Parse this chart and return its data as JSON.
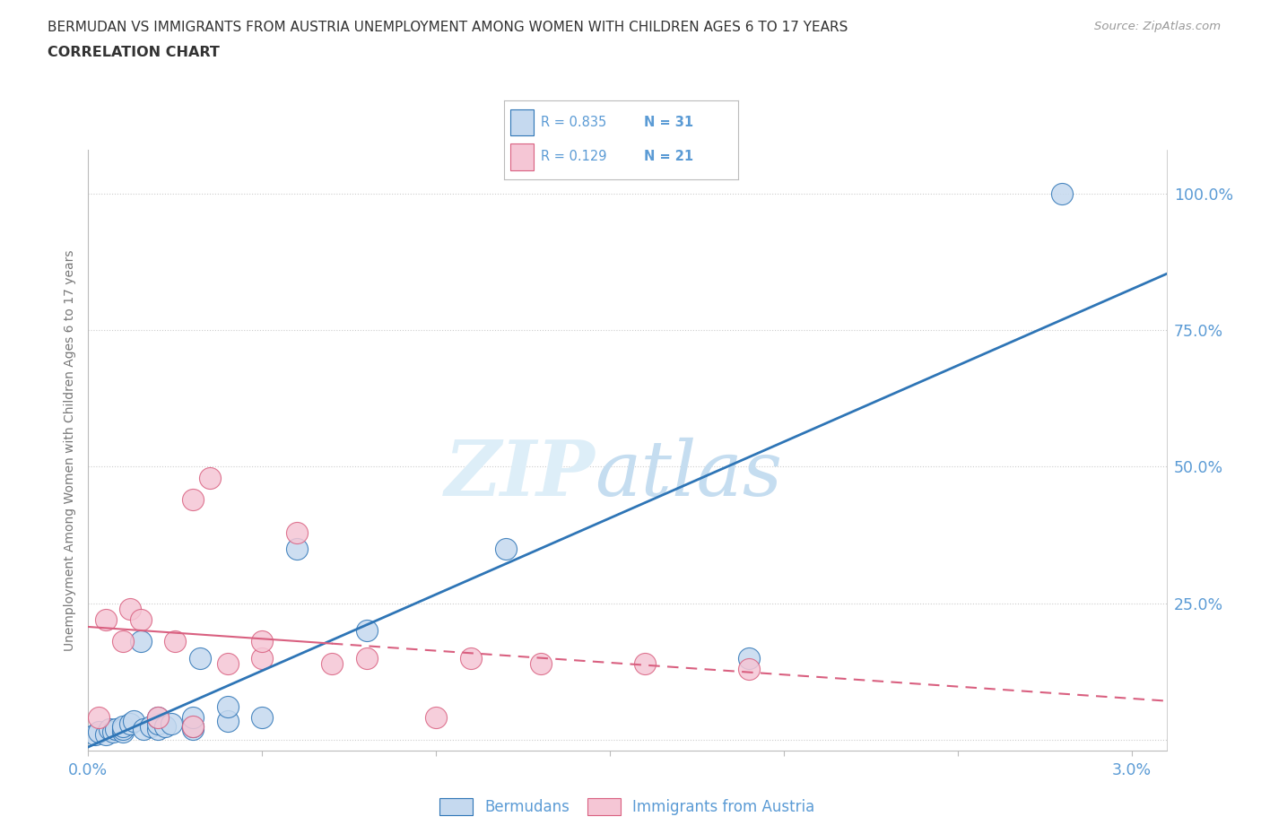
{
  "title_line1": "BERMUDAN VS IMMIGRANTS FROM AUSTRIA UNEMPLOYMENT AMONG WOMEN WITH CHILDREN AGES 6 TO 17 YEARS",
  "title_line2": "CORRELATION CHART",
  "source_text": "Source: ZipAtlas.com",
  "ylabel": "Unemployment Among Women with Children Ages 6 to 17 years",
  "xlim": [
    0.0,
    0.031
  ],
  "ylim": [
    -0.02,
    1.08
  ],
  "xticks": [
    0.0,
    0.005,
    0.01,
    0.015,
    0.02,
    0.025,
    0.03
  ],
  "xtick_labels": [
    "0.0%",
    "",
    "",
    "",
    "",
    "",
    "3.0%"
  ],
  "ytick_positions": [
    0.0,
    0.25,
    0.5,
    0.75,
    1.0
  ],
  "ytick_labels": [
    "",
    "25.0%",
    "50.0%",
    "75.0%",
    "100.0%"
  ],
  "r_bermuda": 0.835,
  "n_bermuda": 31,
  "r_austria": 0.129,
  "n_austria": 21,
  "color_blue_fill": "#c5d9ef",
  "color_blue_edge": "#2e75b6",
  "color_pink_fill": "#f5c6d5",
  "color_pink_edge": "#d96080",
  "color_axis_text": "#5b9bd5",
  "color_title": "#333333",
  "color_source": "#999999",
  "color_ylabel": "#777777",
  "color_grid": "#cccccc",
  "color_spine": "#bbbbbb",
  "watermark_color": "#ddeef8",
  "legend_label_1": "Bermudans",
  "legend_label_2": "Immigrants from Austria",
  "bermudans_x": [
    0.0002,
    0.0003,
    0.0005,
    0.0006,
    0.0007,
    0.0008,
    0.001,
    0.001,
    0.001,
    0.0012,
    0.0013,
    0.0015,
    0.0016,
    0.0018,
    0.002,
    0.002,
    0.002,
    0.0022,
    0.0024,
    0.003,
    0.003,
    0.003,
    0.0032,
    0.004,
    0.004,
    0.005,
    0.006,
    0.008,
    0.012,
    0.019,
    0.028
  ],
  "bermudans_y": [
    0.01,
    0.015,
    0.01,
    0.02,
    0.015,
    0.02,
    0.015,
    0.02,
    0.025,
    0.03,
    0.035,
    0.18,
    0.02,
    0.025,
    0.02,
    0.03,
    0.04,
    0.025,
    0.03,
    0.02,
    0.025,
    0.04,
    0.15,
    0.035,
    0.06,
    0.04,
    0.35,
    0.2,
    0.35,
    0.15,
    1.0
  ],
  "austria_x": [
    0.0003,
    0.0005,
    0.001,
    0.0012,
    0.0015,
    0.002,
    0.0025,
    0.003,
    0.003,
    0.0035,
    0.004,
    0.005,
    0.005,
    0.006,
    0.007,
    0.008,
    0.01,
    0.011,
    0.013,
    0.016,
    0.019
  ],
  "austria_y": [
    0.04,
    0.22,
    0.18,
    0.24,
    0.22,
    0.04,
    0.18,
    0.025,
    0.44,
    0.48,
    0.14,
    0.15,
    0.18,
    0.38,
    0.14,
    0.15,
    0.04,
    0.15,
    0.14,
    0.14,
    0.13
  ]
}
